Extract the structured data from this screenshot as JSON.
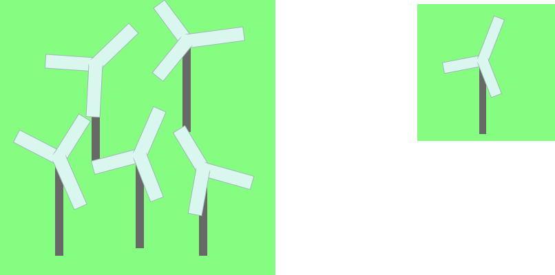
{
  "colors": {
    "background": "#ffffff",
    "field": "#84fd81",
    "tower": "#686868",
    "blade_fill": "#d9f6ef",
    "blade_stroke": "#9fb9b3"
  },
  "panels": [
    {
      "name": "wind-farm-panel",
      "turbine_count": 5
    },
    {
      "name": "single-turbine-panel",
      "turbine_count": 1
    }
  ]
}
